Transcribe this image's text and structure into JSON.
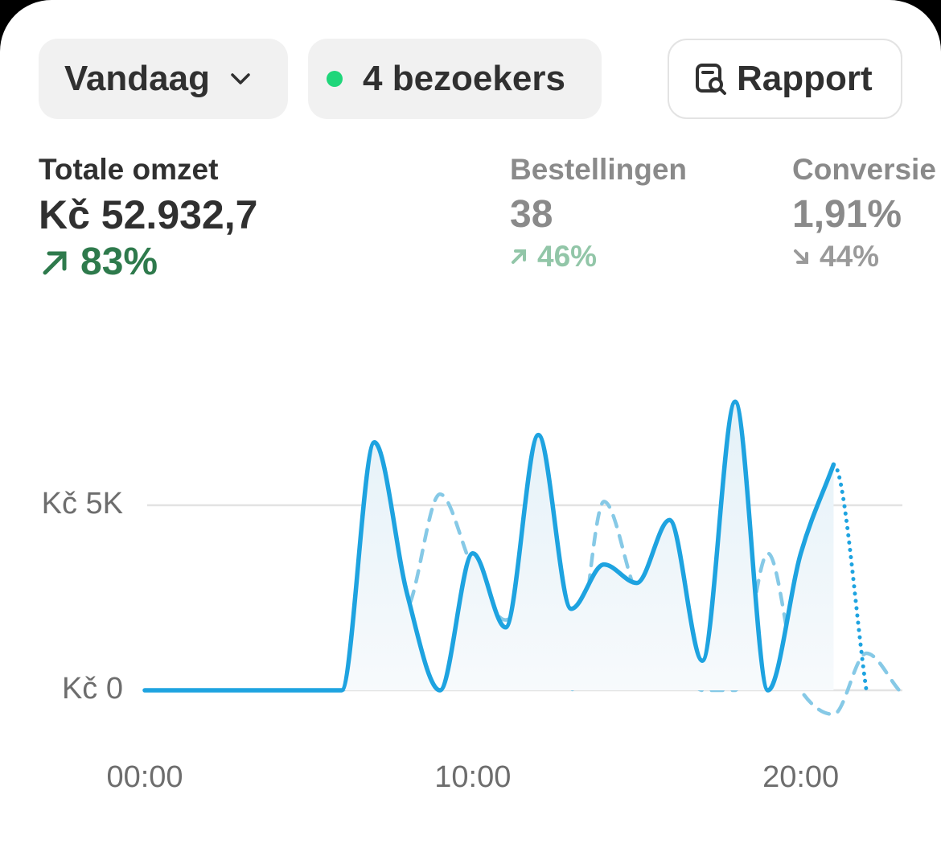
{
  "toolbar": {
    "period": "Vandaag",
    "visitors": "4 bezoekers",
    "report": "Rapport"
  },
  "metrics": [
    {
      "label": "Totale omzet",
      "value": "Kč 52.932,7",
      "change": "83%"
    },
    {
      "label": "Bestellingen",
      "value": "38",
      "change": "46%"
    },
    {
      "label": "Conversie",
      "value": "1,91%",
      "change": "44%"
    }
  ],
  "chart_data": {
    "type": "line",
    "x": [
      0,
      1,
      2,
      3,
      4,
      5,
      6,
      7,
      8,
      9,
      10,
      11,
      12,
      13,
      14,
      15,
      16,
      17,
      18,
      19,
      20,
      21,
      22,
      23
    ],
    "xlim": [
      0,
      23
    ],
    "xticks": [
      {
        "value": 0,
        "label": "00:00"
      },
      {
        "value": 10,
        "label": "10:00"
      },
      {
        "value": 20,
        "label": "20:00"
      }
    ],
    "ylim": [
      -1000,
      8000
    ],
    "yticks": [
      {
        "value": 0,
        "label": "Kč 0"
      },
      {
        "value": 5000,
        "label": "Kč 5K"
      }
    ],
    "grid": true,
    "series": [
      {
        "color": "#1ea3e0",
        "values": [
          0,
          0,
          0,
          0,
          0,
          0,
          0,
          6700,
          2600,
          0,
          3700,
          1700,
          6900,
          2200,
          3400,
          2900,
          4600,
          800,
          7800,
          0,
          3700,
          6100,
          0,
          null
        ]
      },
      {
        "color": "#86c9e6",
        "values": [
          0,
          0,
          0,
          0,
          0,
          0,
          0,
          1600,
          2200,
          5300,
          3300,
          1900,
          2800,
          0,
          5100,
          2600,
          1500,
          0,
          0,
          3700,
          0,
          -650,
          1000,
          0
        ]
      }
    ]
  }
}
